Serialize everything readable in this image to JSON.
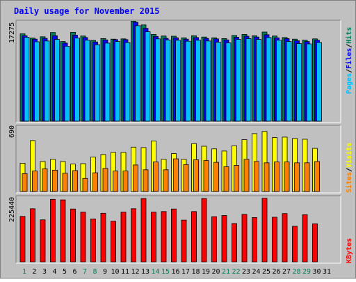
{
  "chart_data": [
    {
      "type": "bar",
      "title": "Daily usage for November 2015",
      "panel": "top",
      "x": [
        "1",
        "2",
        "3",
        "4",
        "5",
        "6",
        "7",
        "8",
        "9",
        "10",
        "11",
        "12",
        "13",
        "14",
        "15",
        "16",
        "17",
        "18",
        "19",
        "20",
        "21",
        "22",
        "23",
        "24",
        "25",
        "26",
        "27",
        "28",
        "29",
        "30",
        "31"
      ],
      "ytick_label": "17275",
      "ylim": [
        0,
        19200
      ],
      "right_label": [
        "Pages",
        "/",
        "Files",
        "/",
        "Hits"
      ],
      "series": [
        {
          "name": "Hits",
          "color": "#00805c",
          "values": [
            16600,
            15800,
            16050,
            16850,
            15150,
            16900,
            16200,
            15350,
            15700,
            15600,
            15650,
            19000,
            18300,
            16500,
            16200,
            16150,
            15850,
            16250,
            16000,
            15850,
            15700,
            16300,
            16500,
            16250,
            16950,
            16200,
            15900,
            15600,
            15400,
            15650,
            null
          ]
        },
        {
          "name": "Files",
          "color": "#0000ff",
          "values": [
            16250,
            15600,
            15750,
            16250,
            14850,
            16350,
            15900,
            15050,
            15450,
            15500,
            15500,
            18800,
            17650,
            16100,
            15750,
            15850,
            15600,
            15900,
            15750,
            15650,
            15450,
            15950,
            16150,
            16000,
            16450,
            15850,
            15700,
            15300,
            15150,
            15400,
            null
          ]
        },
        {
          "name": "Pages",
          "color": "#00c0ff",
          "values": [
            15950,
            15100,
            15250,
            15550,
            14250,
            15800,
            15400,
            14550,
            14850,
            15150,
            14950,
            18150,
            17000,
            15650,
            15450,
            15400,
            15200,
            15400,
            15250,
            15000,
            14900,
            15550,
            15700,
            15550,
            15900,
            15400,
            15150,
            14750,
            14700,
            14950,
            null
          ]
        }
      ]
    },
    {
      "type": "bar",
      "panel": "middle",
      "x": [
        "1",
        "2",
        "3",
        "4",
        "5",
        "6",
        "7",
        "8",
        "9",
        "10",
        "11",
        "12",
        "13",
        "14",
        "15",
        "16",
        "17",
        "18",
        "19",
        "20",
        "21",
        "22",
        "23",
        "24",
        "25",
        "26",
        "27",
        "28",
        "29",
        "30",
        "31"
      ],
      "ytick_label": "690",
      "ylim": [
        0,
        760
      ],
      "right_label": [
        "Sites",
        "/",
        "Visits"
      ],
      "series": [
        {
          "name": "Visits",
          "color": "#ffff00",
          "values": [
            325,
            585,
            345,
            370,
            345,
            315,
            320,
            395,
            425,
            450,
            450,
            510,
            505,
            580,
            370,
            435,
            370,
            550,
            520,
            490,
            465,
            525,
            595,
            665,
            690,
            620,
            625,
            610,
            600,
            495,
            null
          ]
        },
        {
          "name": "Sites",
          "color": "#ff8000",
          "values": [
            205,
            235,
            260,
            245,
            210,
            240,
            150,
            215,
            265,
            235,
            235,
            305,
            250,
            340,
            250,
            375,
            310,
            365,
            355,
            335,
            285,
            300,
            370,
            345,
            330,
            340,
            340,
            330,
            330,
            345,
            null
          ]
        }
      ]
    },
    {
      "type": "bar",
      "panel": "bottom",
      "x": [
        "1",
        "2",
        "3",
        "4",
        "5",
        "6",
        "7",
        "8",
        "9",
        "10",
        "11",
        "12",
        "13",
        "14",
        "15",
        "16",
        "17",
        "18",
        "19",
        "20",
        "21",
        "22",
        "23",
        "24",
        "25",
        "26",
        "27",
        "28",
        "29",
        "30",
        "31"
      ],
      "ytick_label": "225440",
      "ylim": [
        0,
        233000
      ],
      "right_label": [
        "KBytes"
      ],
      "series": [
        {
          "name": "KBytes",
          "color": "#ff0000",
          "values": [
            160000,
            187000,
            148000,
            220000,
            218000,
            186000,
            175000,
            151000,
            171000,
            143000,
            175000,
            187000,
            223000,
            175000,
            177000,
            186000,
            147000,
            177000,
            223000,
            159000,
            163000,
            135000,
            167000,
            156000,
            224000,
            157000,
            170000,
            125000,
            166000,
            134000,
            null
          ]
        }
      ]
    }
  ],
  "x_label_colors": {
    "weekday": "#000000",
    "weekend": "#00805c"
  },
  "weekend_days": [
    1,
    7,
    8,
    14,
    15,
    21,
    22,
    28,
    29
  ],
  "colors": {
    "background": "#c0c0c0",
    "title": "#0000ff",
    "pages": "#00c0ff",
    "files": "#0000ff",
    "hits": "#00805c",
    "sites": "#ff8000",
    "visits": "#ffff00",
    "kbytes": "#ff0000"
  }
}
